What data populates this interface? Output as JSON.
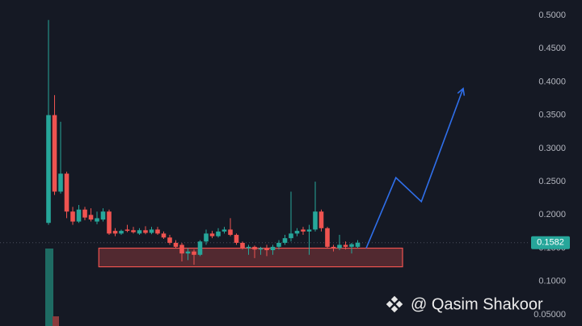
{
  "chart_data": {
    "type": "candlestick",
    "ylim": [
      0.033,
      0.523
    ],
    "yticks": [
      {
        "value": 0.5,
        "label": "0.5000"
      },
      {
        "value": 0.45,
        "label": "0.4500"
      },
      {
        "value": 0.4,
        "label": "0.4000"
      },
      {
        "value": 0.35,
        "label": "0.3500"
      },
      {
        "value": 0.3,
        "label": "0.3000"
      },
      {
        "value": 0.25,
        "label": "0.2500"
      },
      {
        "value": 0.2,
        "label": "0.2000"
      },
      {
        "value": 0.15,
        "label": "0.1500"
      },
      {
        "value": 0.1,
        "label": "0.1000"
      },
      {
        "value": 0.05,
        "label": "0.05000"
      }
    ],
    "grid": false,
    "up_color": "#26a69a",
    "down_color": "#ef5350",
    "open": [
      0.188,
      0.35,
      0.235,
      0.262,
      0.205,
      0.19,
      0.208,
      0.2,
      0.19,
      0.193,
      0.205,
      0.176,
      0.172,
      0.178,
      0.177,
      0.172,
      0.177,
      0.173,
      0.178,
      0.172,
      0.166,
      0.158,
      0.155,
      0.142,
      0.145,
      0.14,
      0.16,
      0.172,
      0.168,
      0.175,
      0.178,
      0.17,
      0.158,
      0.15,
      0.152,
      0.148,
      0.15,
      0.147,
      0.152,
      0.158,
      0.165,
      0.172,
      0.178,
      0.175,
      0.178,
      0.205,
      0.18,
      0.152,
      0.15,
      0.155,
      0.152,
      0.152
    ],
    "high": [
      0.493,
      0.38,
      0.34,
      0.265,
      0.212,
      0.215,
      0.212,
      0.21,
      0.205,
      0.21,
      0.208,
      0.18,
      0.178,
      0.185,
      0.182,
      0.18,
      0.183,
      0.182,
      0.182,
      0.175,
      0.17,
      0.162,
      0.158,
      0.15,
      0.148,
      0.162,
      0.178,
      0.176,
      0.18,
      0.182,
      0.195,
      0.172,
      0.16,
      0.155,
      0.154,
      0.152,
      0.155,
      0.155,
      0.162,
      0.17,
      0.235,
      0.18,
      0.182,
      0.185,
      0.25,
      0.208,
      0.182,
      0.155,
      0.17,
      0.16,
      0.158,
      0.162
    ],
    "low": [
      0.185,
      0.23,
      0.232,
      0.195,
      0.185,
      0.188,
      0.192,
      0.19,
      0.186,
      0.19,
      0.17,
      0.168,
      0.17,
      0.174,
      0.172,
      0.17,
      0.171,
      0.171,
      0.17,
      0.164,
      0.155,
      0.15,
      0.13,
      0.132,
      0.125,
      0.138,
      0.155,
      0.165,
      0.166,
      0.172,
      0.168,
      0.155,
      0.148,
      0.14,
      0.135,
      0.14,
      0.138,
      0.14,
      0.148,
      0.155,
      0.16,
      0.168,
      0.17,
      0.14,
      0.175,
      0.175,
      0.15,
      0.145,
      0.147,
      0.148,
      0.142,
      0.15
    ],
    "close": [
      0.35,
      0.235,
      0.262,
      0.205,
      0.19,
      0.208,
      0.196,
      0.193,
      0.195,
      0.205,
      0.172,
      0.172,
      0.176,
      0.176,
      0.174,
      0.177,
      0.173,
      0.178,
      0.172,
      0.166,
      0.158,
      0.152,
      0.142,
      0.145,
      0.14,
      0.16,
      0.172,
      0.168,
      0.175,
      0.178,
      0.17,
      0.158,
      0.15,
      0.152,
      0.148,
      0.15,
      0.147,
      0.152,
      0.158,
      0.165,
      0.172,
      0.176,
      0.175,
      0.178,
      0.205,
      0.18,
      0.152,
      0.15,
      0.155,
      0.152,
      0.156,
      0.1582
    ],
    "last_price": {
      "value": 0.1582,
      "label": "0.1582"
    },
    "zone": {
      "x": [
        8.3,
        58.4
      ],
      "y": [
        0.122,
        0.15
      ]
    },
    "projection": {
      "x": [
        52.4,
        57.3,
        61.5,
        68.4
      ],
      "values": [
        0.15,
        0.256,
        0.22,
        0.39
      ]
    },
    "watermark": "@ Qasim Shakoor"
  }
}
